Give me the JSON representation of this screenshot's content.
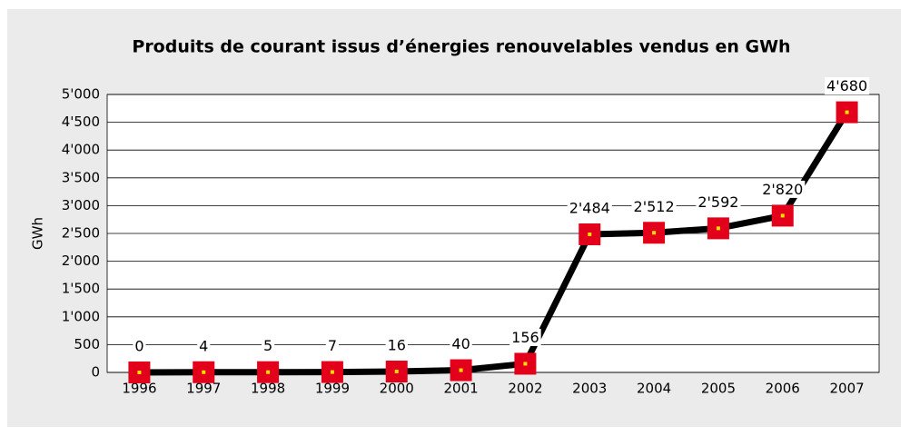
{
  "chart_data": {
    "type": "line",
    "title": "Produits de courant issus d’énergies renouvelables vendus en  GWh",
    "ylabel": "GWh",
    "categories": [
      "1996",
      "1997",
      "1998",
      "1999",
      "2000",
      "2001",
      "2002",
      "2003",
      "2004",
      "2005",
      "2006",
      "2007"
    ],
    "values": [
      0,
      4,
      5,
      7,
      16,
      40,
      156,
      2484,
      2512,
      2592,
      2820,
      4680
    ],
    "value_labels": [
      "0",
      "4",
      "5",
      "7",
      "16",
      "40",
      "156",
      "2'484",
      "2'512",
      "2'592",
      "2'820",
      "4'680"
    ],
    "color": "#000000",
    "marker_color": "#e2001a",
    "ylim": [
      0,
      5000
    ],
    "yticks": [
      0,
      500,
      {
        "value": 1000,
        "label": "1'000"
      },
      {
        "value": 1500,
        "label": "1'500"
      },
      {
        "value": 2000,
        "label": "2'000"
      },
      {
        "value": 2500,
        "label": "2'500"
      },
      {
        "value": 3000,
        "label": "3'000"
      },
      {
        "value": 3500,
        "label": "3'500"
      },
      {
        "value": 4000,
        "label": "4'000"
      },
      {
        "value": 4500,
        "label": "4'500"
      },
      {
        "value": 5000,
        "label": "5'000"
      }
    ],
    "grid": true
  }
}
